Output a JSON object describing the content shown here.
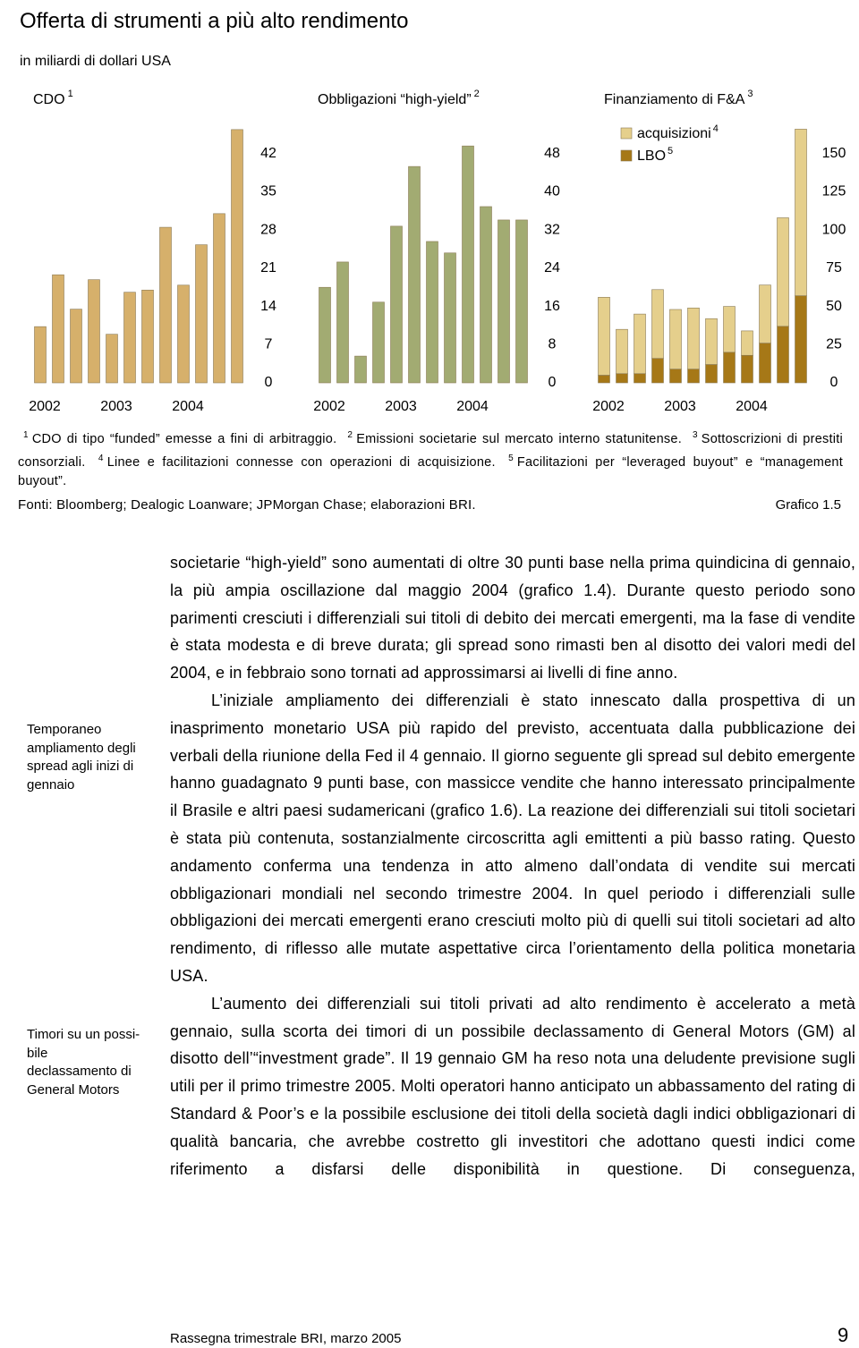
{
  "header": {
    "title": "Offerta di strumenti a più alto rendimento",
    "subtitle": "in miliardi di dollari USA"
  },
  "chart_data": [
    {
      "type": "bar",
      "title": "CDO",
      "title_note": "1",
      "categories": [
        "2002",
        null,
        null,
        null,
        "2003",
        null,
        null,
        null,
        "2004",
        null,
        null,
        null
      ],
      "values": [
        10.3,
        19.8,
        13.5,
        18.9,
        8.9,
        16.6,
        17.0,
        28.5,
        17.9,
        25.3,
        31.0,
        46.4
      ],
      "color": "#d6b06b",
      "ylim": [
        0,
        49
      ],
      "yticks": [
        0,
        7,
        14,
        21,
        28,
        35,
        42
      ]
    },
    {
      "type": "bar",
      "title": "Obbligazioni “high-yield”",
      "title_note": "2",
      "categories": [
        "2002",
        null,
        null,
        null,
        "2003",
        null,
        null,
        null,
        "2004",
        null,
        null,
        null
      ],
      "values": [
        20.0,
        25.3,
        5.6,
        16.9,
        32.8,
        45.3,
        29.6,
        27.2,
        49.6,
        36.9,
        34.1,
        34.1
      ],
      "color": "#a2ab72",
      "ylim": [
        0,
        56
      ],
      "yticks": [
        0,
        8,
        16,
        24,
        32,
        40,
        48
      ]
    },
    {
      "type": "stacked_bar",
      "title": "Finanziamento di F&A",
      "title_note": "3",
      "categories": [
        "2002",
        null,
        null,
        null,
        "2003",
        null,
        null,
        null,
        "2004",
        null,
        null,
        null
      ],
      "series": [
        {
          "name": "LBO",
          "note": "5",
          "color": "#a67817",
          "values": [
            5,
            6,
            6,
            16,
            9,
            9,
            12,
            20,
            18,
            26,
            37,
            57
          ]
        },
        {
          "name": "acquisizioni",
          "note": "4",
          "color": "#e5cf8c",
          "values": [
            51,
            29,
            39,
            45,
            39,
            40,
            30,
            30,
            16,
            38,
            71,
            109
          ]
        }
      ],
      "legend": "top-left",
      "ylim": [
        0,
        175
      ],
      "yticks": [
        0,
        25,
        50,
        75,
        100,
        125,
        150
      ]
    }
  ],
  "footnotes": [
    {
      "num": "1",
      "text": "CDO di tipo “funded” emesse a fini di arbitraggio."
    },
    {
      "num": "2",
      "text": "Emissioni societarie sul mercato interno statunitense."
    },
    {
      "num": "3",
      "text": "Sottoscrizioni di prestiti consorziali."
    },
    {
      "num": "4",
      "text": "Linee e facilitazioni connesse con operazioni di acquisizione."
    },
    {
      "num": "5",
      "text": "Facilitazioni per “leveraged buyout” e “management buyout”."
    }
  ],
  "source": "Fonti: Bloomberg; Dealogic Loanware; JPMorgan Chase; elaborazioni BRI.",
  "figure_label": "Grafico 1.5",
  "sidebar": [
    "Temporaneo ampliamento degli spread agli inizi di gennaio",
    "Timori su un possi­bile declassamento di General Motors"
  ],
  "body": [
    "societarie “high-yield” sono aumentati di oltre 30 punti base nella prima quindicina di gennaio, la più ampia oscillazione dal maggio 2004 (grafico 1.4). Durante questo periodo sono parimenti cresciuti i differenziali sui titoli di debito dei mercati emergenti, ma la fase di vendite è stata modesta e di breve durata; gli spread sono rimasti ben al disotto dei valori medi del 2004, e in febbraio sono tornati ad approssimarsi ai livelli di fine anno.",
    "L’iniziale ampliamento dei differenziali è stato innescato dalla prospettiva di un inasprimento monetario USA più rapido del previsto, accentuata dalla pubblicazione dei verbali della riunione della Fed il 4 gennaio. Il giorno seguente gli spread sul debito emergente hanno guadagnato 9 punti base, con massicce vendite che hanno interessato principalmente il Brasile e altri paesi sudamericani (grafico 1.6). La reazione dei differenziali sui titoli societari è stata più contenuta, sostanzialmente circoscritta agli emittenti a più basso rating. Questo andamento conferma una tendenza in atto almeno dall’ondata di vendite sui mercati obbligazionari mondiali nel secondo trimestre 2004. In quel periodo i differenziali sulle obbligazioni dei mercati emergenti erano cresciuti molto più di quelli sui titoli societari ad alto rendimento, di riflesso alle mutate aspettative circa l’orientamento della politica monetaria USA.",
    "L’aumento dei differenziali sui titoli privati ad alto rendimento è accelerato a metà gennaio, sulla scorta dei timori di un possibile declassamento di General Motors (GM) al disotto dell’“investment grade”. Il 19 gennaio GM ha reso nota una deludente previsione sugli utili per il primo trimestre 2005. Molti operatori hanno anticipato un abbassamento del rating di Standard & Poor’s e la possibile esclusione dei titoli della società dagli indici obbligazionari di qualità bancaria, che avrebbe costretto gli investitori che adottano questi indici come riferimento a disfarsi delle disponibilità in questione. Di conseguenza,"
  ],
  "footer": {
    "text": "Rassegna trimestrale BRI, marzo 2005",
    "page": "9"
  }
}
